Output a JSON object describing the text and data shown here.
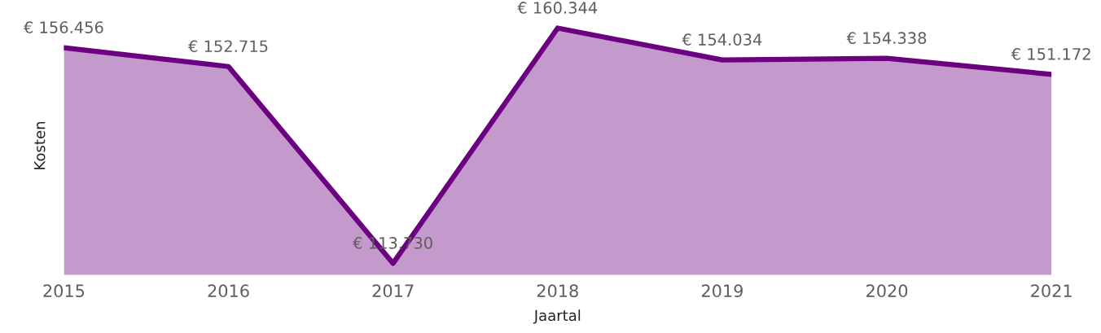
{
  "chart_data": {
    "type": "area",
    "xlabel": "Jaartal",
    "ylabel": "Kosten",
    "categories": [
      "2015",
      "2016",
      "2017",
      "2018",
      "2019",
      "2020",
      "2021"
    ],
    "series": [
      {
        "color": "#6b0080",
        "values": [
          156456,
          152715,
          113730,
          160344,
          154034,
          154338,
          151172
        ],
        "value_labels": [
          "€ 156.456",
          "€ 152.715",
          "€ 113.730",
          "€ 160.344",
          "€ 154.034",
          "€ 154.338",
          "€ 151.172"
        ]
      }
    ],
    "grid": false,
    "legend": false,
    "tick_labels": "x"
  }
}
